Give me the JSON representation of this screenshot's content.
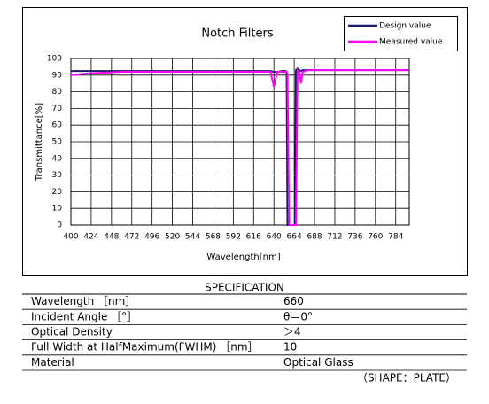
{
  "chart_data": {
    "type": "line",
    "title": "Notch Filters",
    "x_label": "Wavelength[nm]",
    "y_label": "Transmittance[%]",
    "x": [
      400,
      420,
      440,
      460,
      480,
      500,
      520,
      540,
      560,
      580,
      600,
      620,
      636,
      640,
      644,
      650,
      654,
      655,
      656,
      658,
      660,
      662,
      664,
      665,
      666,
      668,
      670,
      672,
      674,
      680,
      690,
      700,
      720,
      740,
      760,
      780,
      800
    ],
    "series": [
      {
        "name": "Design value",
        "color": "#1a1a6e",
        "values": [
          92.5,
          92.5,
          92.5,
          92.5,
          92.5,
          92.5,
          92.5,
          92.5,
          92.5,
          92.5,
          92.5,
          92.5,
          92.5,
          92,
          92,
          92.5,
          92.5,
          92,
          0,
          0,
          0,
          0,
          0,
          0,
          93,
          94,
          93,
          92.5,
          93,
          93,
          93,
          93,
          93,
          93,
          93,
          93,
          93
        ]
      },
      {
        "name": "Measured value",
        "color": "#ff00ff",
        "values": [
          90,
          91,
          91.5,
          92,
          92,
          92,
          92,
          92,
          92,
          92,
          92,
          92,
          92,
          83,
          92,
          92,
          92,
          92,
          91,
          0,
          0,
          0,
          0,
          0,
          0,
          93,
          92,
          85,
          92,
          93,
          93,
          93,
          93,
          93,
          93,
          93,
          93
        ]
      }
    ],
    "xlim": [
      400,
      800
    ],
    "xticks": [
      400,
      424,
      448,
      472,
      496,
      520,
      544,
      568,
      592,
      616,
      640,
      664,
      688,
      712,
      736,
      760,
      784
    ],
    "ylim": [
      0,
      100
    ],
    "yticks": [
      0,
      10,
      20,
      30,
      40,
      50,
      60,
      70,
      80,
      90,
      100
    ],
    "grid": true,
    "legend": "upper right"
  },
  "specification": {
    "title": "SPECIFICATION",
    "rows": [
      [
        "Wavelength ［nm］",
        "660"
      ],
      [
        "Incident Angle ［°］",
        "θ＝0°"
      ],
      [
        "Optical Density",
        "＞4"
      ],
      [
        "Full Width at HalfMaximum(FWHM) ［nm］",
        "10"
      ],
      [
        "Material",
        "Optical Glass"
      ]
    ],
    "note": "（SHAPE：PLATE）"
  }
}
